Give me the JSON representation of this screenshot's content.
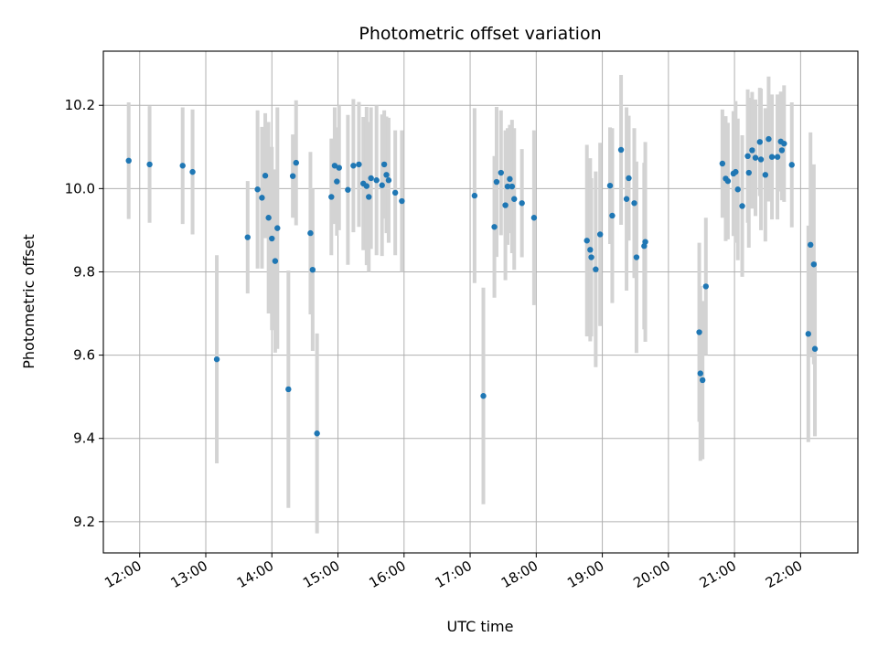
{
  "chart_data": {
    "type": "scatter",
    "title": "Photometric offset variation",
    "xlabel": "UTC time",
    "ylabel": "Photometric offset",
    "x_axis": {
      "kind": "time",
      "date": "2000-01-01",
      "range": [
        "11:27",
        "22:52"
      ],
      "ticks": [
        "12:00",
        "13:00",
        "14:00",
        "15:00",
        "16:00",
        "17:00",
        "18:00",
        "19:00",
        "20:00",
        "21:00",
        "22:00"
      ]
    },
    "y_axis": {
      "range": [
        9.125,
        10.33
      ],
      "ticks": [
        "9.2",
        "9.4",
        "9.6",
        "9.8",
        "10.0",
        "10.2"
      ]
    },
    "grid": true,
    "colors": {
      "points": "#1f77b4",
      "error_bars": "#d3d3d3",
      "grid": "#b0b0b0"
    },
    "series": [
      {
        "columns": [
          "time",
          "offset",
          "error"
        ],
        "points": [
          [
            "11:50",
            10.067,
            0.14
          ],
          [
            "12:09",
            10.058,
            0.14
          ],
          [
            "12:39",
            10.055,
            0.14
          ],
          [
            "12:48",
            10.04,
            0.15
          ],
          [
            "13:10",
            9.59,
            0.25
          ],
          [
            "13:38",
            9.883,
            0.135
          ],
          [
            "13:47",
            9.998,
            0.19
          ],
          [
            "13:51",
            9.978,
            0.17
          ],
          [
            "13:54",
            10.031,
            0.15
          ],
          [
            "13:57",
            9.93,
            0.23
          ],
          [
            "14:00",
            9.88,
            0.22
          ],
          [
            "14:03",
            9.826,
            0.22
          ],
          [
            "14:05",
            9.905,
            0.29
          ],
          [
            "14:15",
            9.518,
            0.285
          ],
          [
            "14:19",
            10.03,
            0.1
          ],
          [
            "14:22",
            10.062,
            0.15
          ],
          [
            "14:35",
            9.893,
            0.195
          ],
          [
            "14:37",
            9.805,
            0.195
          ],
          [
            "14:41",
            9.412,
            0.24
          ],
          [
            "14:54",
            9.98,
            0.14
          ],
          [
            "14:57",
            10.055,
            0.14
          ],
          [
            "14:59",
            10.017,
            0.13
          ],
          [
            "15:01",
            10.05,
            0.15
          ],
          [
            "15:09",
            9.997,
            0.18
          ],
          [
            "15:14",
            10.055,
            0.16
          ],
          [
            "15:19",
            10.058,
            0.15
          ],
          [
            "15:23",
            10.012,
            0.16
          ],
          [
            "15:26",
            10.006,
            0.19
          ],
          [
            "15:28",
            9.98,
            0.18
          ],
          [
            "15:30",
            10.025,
            0.17
          ],
          [
            "15:35",
            10.02,
            0.18
          ],
          [
            "15:40",
            10.008,
            0.17
          ],
          [
            "15:42",
            10.058,
            0.13
          ],
          [
            "15:44",
            10.033,
            0.14
          ],
          [
            "15:46",
            10.02,
            0.15
          ],
          [
            "15:52",
            9.99,
            0.15
          ],
          [
            "15:58",
            9.97,
            0.17
          ],
          [
            "17:04",
            9.983,
            0.21
          ],
          [
            "17:12",
            9.502,
            0.26
          ],
          [
            "17:22",
            9.908,
            0.17
          ],
          [
            "17:24",
            10.016,
            0.18
          ],
          [
            "17:28",
            10.038,
            0.15
          ],
          [
            "17:32",
            9.96,
            0.18
          ],
          [
            "17:34",
            10.005,
            0.14
          ],
          [
            "17:36",
            10.023,
            0.13
          ],
          [
            "17:38",
            10.005,
            0.16
          ],
          [
            "17:40",
            9.975,
            0.17
          ],
          [
            "17:47",
            9.965,
            0.13
          ],
          [
            "17:58",
            9.93,
            0.21
          ],
          [
            "18:46",
            9.875,
            0.23
          ],
          [
            "18:49",
            9.853,
            0.22
          ],
          [
            "18:50",
            9.835,
            0.19
          ],
          [
            "18:54",
            9.806,
            0.235
          ],
          [
            "18:58",
            9.89,
            0.22
          ],
          [
            "19:07",
            10.007,
            0.14
          ],
          [
            "19:09",
            9.935,
            0.21
          ],
          [
            "19:17",
            10.093,
            0.18
          ],
          [
            "19:22",
            9.975,
            0.22
          ],
          [
            "19:24",
            10.025,
            0.15
          ],
          [
            "19:29",
            9.965,
            0.18
          ],
          [
            "19:31",
            9.835,
            0.23
          ],
          [
            "19:38",
            9.862,
            0.2
          ],
          [
            "19:39",
            9.872,
            0.24
          ],
          [
            "20:28",
            9.655,
            0.215
          ],
          [
            "20:29",
            9.556,
            0.21
          ],
          [
            "20:31",
            9.54,
            0.19
          ],
          [
            "20:34",
            9.765,
            0.165
          ],
          [
            "20:49",
            10.06,
            0.13
          ],
          [
            "20:52",
            10.024,
            0.15
          ],
          [
            "20:54",
            10.018,
            0.14
          ],
          [
            "20:59",
            10.036,
            0.15
          ],
          [
            "21:01",
            10.04,
            0.17
          ],
          [
            "21:03",
            9.998,
            0.17
          ],
          [
            "21:07",
            9.958,
            0.17
          ],
          [
            "21:12",
            10.078,
            0.16
          ],
          [
            "21:13",
            10.038,
            0.18
          ],
          [
            "21:16",
            10.092,
            0.14
          ],
          [
            "21:19",
            10.074,
            0.14
          ],
          [
            "21:23",
            10.112,
            0.13
          ],
          [
            "21:24",
            10.07,
            0.17
          ],
          [
            "21:28",
            10.033,
            0.16
          ],
          [
            "21:31",
            10.119,
            0.15
          ],
          [
            "21:34",
            10.076,
            0.15
          ],
          [
            "21:39",
            10.076,
            0.15
          ],
          [
            "21:42",
            10.113,
            0.12
          ],
          [
            "21:43",
            10.092,
            0.12
          ],
          [
            "21:45",
            10.108,
            0.14
          ],
          [
            "21:52",
            10.057,
            0.15
          ],
          [
            "22:07",
            9.651,
            0.26
          ],
          [
            "22:09",
            9.865,
            0.27
          ],
          [
            "22:12",
            9.818,
            0.24
          ],
          [
            "22:13",
            9.615,
            0.21
          ]
        ]
      }
    ]
  }
}
